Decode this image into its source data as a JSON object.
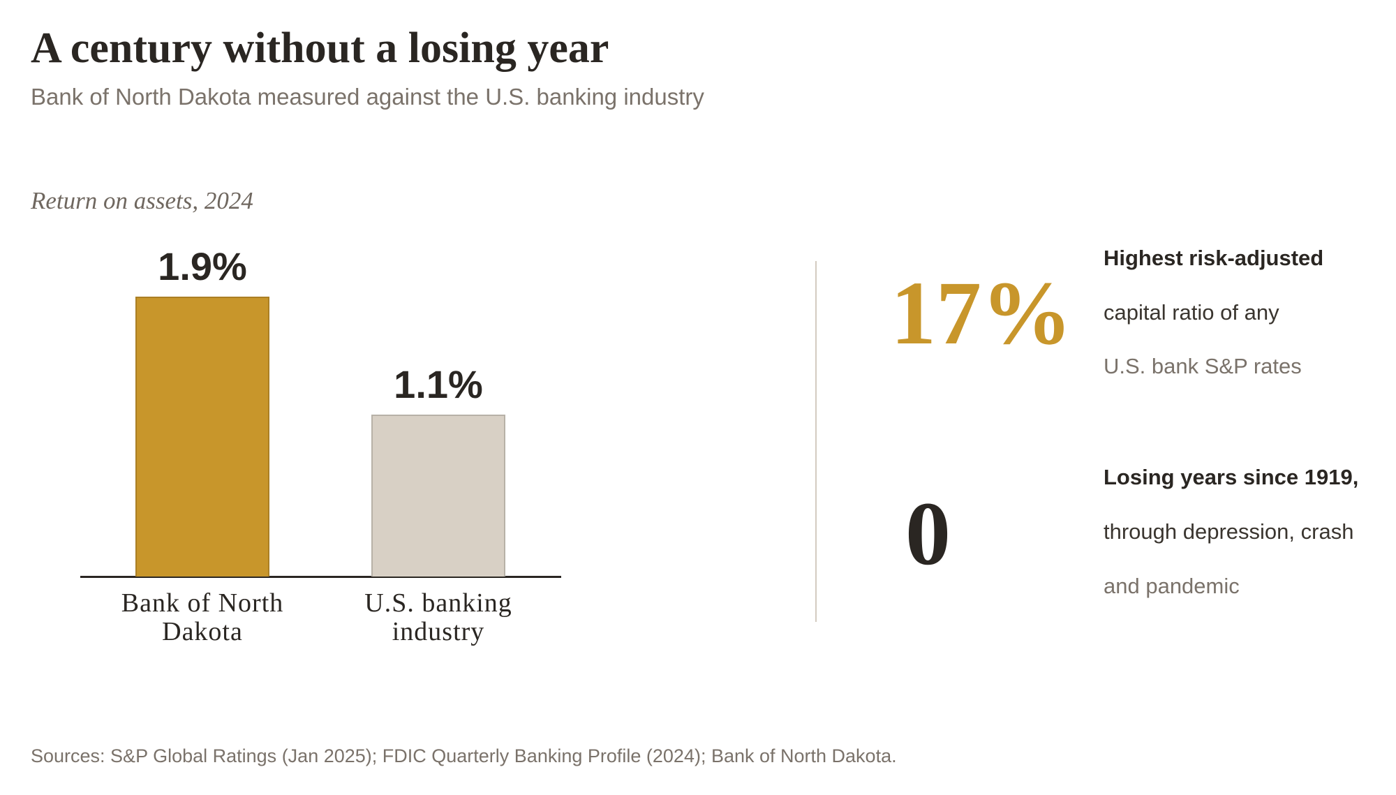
{
  "header": {
    "title": "A century without a losing year",
    "subtitle": "Bank of North Dakota measured against the U.S. banking industry"
  },
  "chart_data": {
    "type": "bar",
    "title": "Return on assets, 2024",
    "categories": [
      "Bank of North Dakota",
      "U.S. banking industry"
    ],
    "values": [
      1.9,
      1.1
    ],
    "value_labels": [
      "1.9%",
      "1.1%"
    ],
    "colors": [
      "#c8962b",
      "#d8d0c5"
    ]
  },
  "stats": [
    {
      "value": "17%",
      "lines": [
        "Highest risk-adjusted",
        "capital ratio of any",
        "U.S. bank S&P rates"
      ]
    },
    {
      "value": "0",
      "lines": [
        "Losing years since 1919,",
        "through depression, crash",
        "and pandemic"
      ]
    }
  ],
  "footer": "Sources: S&P Global Ratings (Jan 2025); FDIC Quarterly Banking Profile (2024); Bank of North Dakota."
}
